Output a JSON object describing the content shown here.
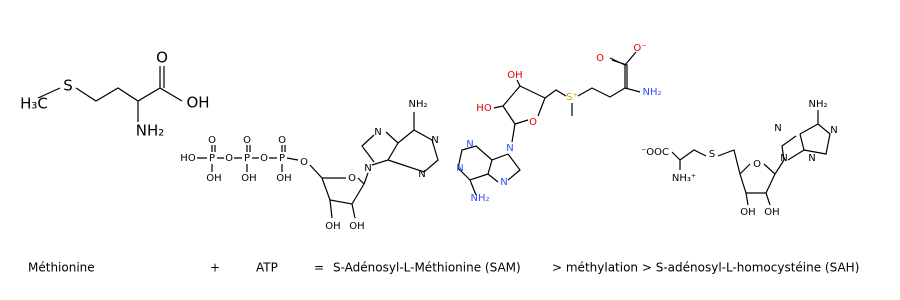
{
  "methionine": {
    "atoms": [
      "H₃C",
      "S",
      "O",
      "OH",
      "NH₂"
    ]
  },
  "atp": {
    "atoms": [
      "HO",
      "P",
      "O",
      "P",
      "O",
      "P",
      "O",
      "O",
      "O",
      "O",
      "OH",
      "OH",
      "OH",
      "O",
      "OH",
      "OH",
      "N",
      "N",
      "N",
      "N",
      "NH₂"
    ]
  },
  "sam": {
    "atoms": [
      "OH",
      "HO",
      "O",
      "S⁺",
      "O⁻",
      "O",
      "NH₂",
      "N",
      "N",
      "N",
      "N",
      "NH₂"
    ]
  },
  "sah": {
    "atoms": [
      "⁻OOC",
      "NH₃⁺",
      "S",
      "O",
      "OH",
      "OH",
      "N",
      "N",
      "N",
      "N",
      "NH₂"
    ]
  },
  "equation": {
    "items": [
      "Méthionine",
      "+",
      "ATP",
      "=",
      "S-Adénosyl-L-Méthionine (SAM)",
      "> méthylation > S-adénosyl-L-homocystéine (SAH)"
    ]
  }
}
